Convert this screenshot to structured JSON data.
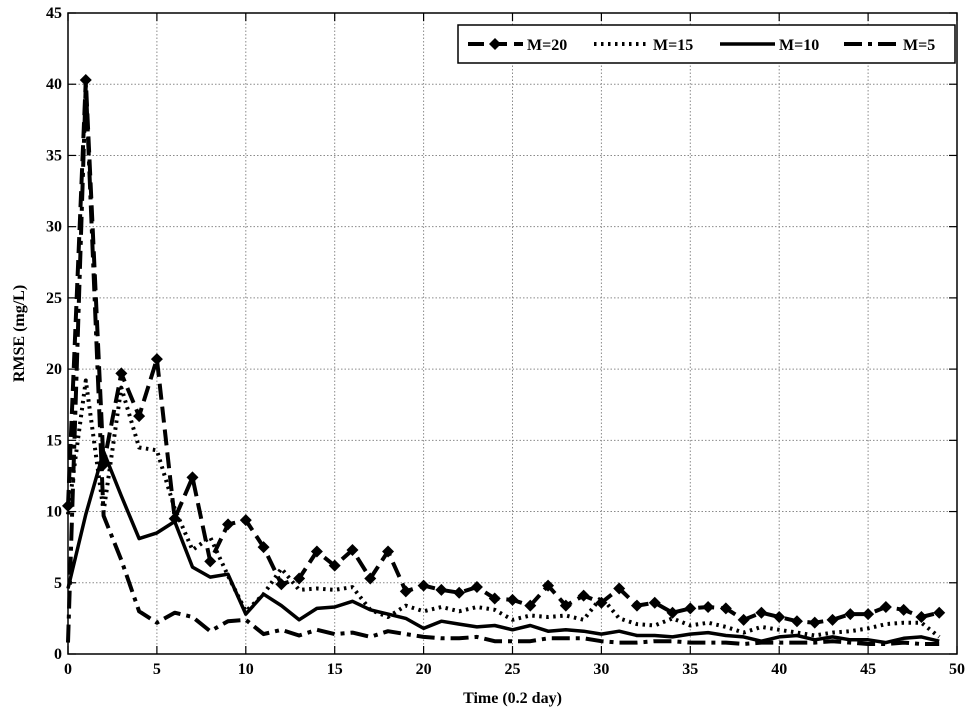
{
  "chart_data": {
    "type": "line",
    "title": "",
    "xlabel": "Time (0.2 day)",
    "ylabel": "RMSE (mg/L)",
    "xlim": [
      0,
      50
    ],
    "ylim": [
      0,
      45
    ],
    "x_ticks": [
      0,
      5,
      10,
      15,
      20,
      25,
      30,
      35,
      40,
      45,
      50
    ],
    "y_ticks": [
      0,
      5,
      10,
      15,
      20,
      25,
      30,
      35,
      40,
      45
    ],
    "grid": true,
    "legend_position": "top-right",
    "x": [
      0,
      1,
      2,
      3,
      4,
      5,
      6,
      7,
      8,
      9,
      10,
      11,
      12,
      13,
      14,
      15,
      16,
      17,
      18,
      19,
      20,
      21,
      22,
      23,
      24,
      25,
      26,
      27,
      28,
      29,
      30,
      31,
      32,
      33,
      34,
      35,
      36,
      37,
      38,
      39,
      40,
      41,
      42,
      43,
      44,
      45,
      46,
      47,
      48,
      49
    ],
    "series": [
      {
        "name": "M=20",
        "style": "dash-diamond",
        "values": [
          10.4,
          40.3,
          13.3,
          19.7,
          16.7,
          20.7,
          9.5,
          12.4,
          6.5,
          9.1,
          9.4,
          7.5,
          4.9,
          5.3,
          7.2,
          6.2,
          7.3,
          5.3,
          7.2,
          4.4,
          4.8,
          4.5,
          4.3,
          4.7,
          3.9,
          3.8,
          3.4,
          4.8,
          3.4,
          4.1,
          3.6,
          4.6,
          3.4,
          3.6,
          2.9,
          3.2,
          3.3,
          3.2,
          2.4,
          2.9,
          2.6,
          2.3,
          2.2,
          2.4,
          2.8,
          2.8,
          3.3,
          3.1,
          2.6,
          2.9
        ]
      },
      {
        "name": "M=15",
        "style": "dotted",
        "values": [
          9.8,
          19.2,
          10.0,
          18.7,
          14.5,
          14.3,
          10.2,
          7.3,
          8.2,
          5.5,
          3.0,
          4.2,
          6.0,
          4.5,
          4.6,
          4.5,
          4.7,
          3.1,
          2.6,
          3.4,
          3.0,
          3.3,
          3.0,
          3.3,
          3.1,
          2.4,
          2.7,
          2.6,
          2.7,
          2.4,
          4.0,
          2.5,
          2.1,
          2.0,
          2.5,
          2.0,
          2.2,
          1.9,
          1.5,
          1.9,
          1.7,
          1.5,
          1.3,
          1.5,
          1.6,
          1.8,
          2.1,
          2.2,
          2.2,
          1.2
        ]
      },
      {
        "name": "M=10",
        "style": "solid",
        "values": [
          4.6,
          9.8,
          14.2,
          11.1,
          8.1,
          8.5,
          9.3,
          6.1,
          5.4,
          5.6,
          2.8,
          4.2,
          3.4,
          2.4,
          3.2,
          3.3,
          3.7,
          3.1,
          2.8,
          2.5,
          1.8,
          2.3,
          2.1,
          1.9,
          2.0,
          1.7,
          2.0,
          1.6,
          1.7,
          1.6,
          1.4,
          1.6,
          1.3,
          1.3,
          1.2,
          1.4,
          1.5,
          1.3,
          1.2,
          0.9,
          1.2,
          1.3,
          1.0,
          1.2,
          1.0,
          1.0,
          0.8,
          1.1,
          1.2,
          0.9
        ]
      },
      {
        "name": "M=5",
        "style": "dash-dot",
        "values": [
          0.8,
          40.0,
          9.7,
          6.6,
          3.0,
          2.2,
          2.9,
          2.6,
          1.6,
          2.3,
          2.4,
          1.4,
          1.7,
          1.3,
          1.7,
          1.4,
          1.5,
          1.2,
          1.6,
          1.4,
          1.2,
          1.1,
          1.1,
          1.2,
          0.9,
          0.9,
          0.9,
          1.1,
          1.1,
          1.1,
          0.9,
          0.8,
          0.8,
          0.9,
          0.9,
          0.8,
          0.8,
          0.8,
          0.7,
          0.8,
          0.8,
          0.8,
          0.8,
          0.9,
          0.8,
          0.7,
          0.7,
          0.8,
          0.7,
          0.7
        ]
      }
    ]
  }
}
